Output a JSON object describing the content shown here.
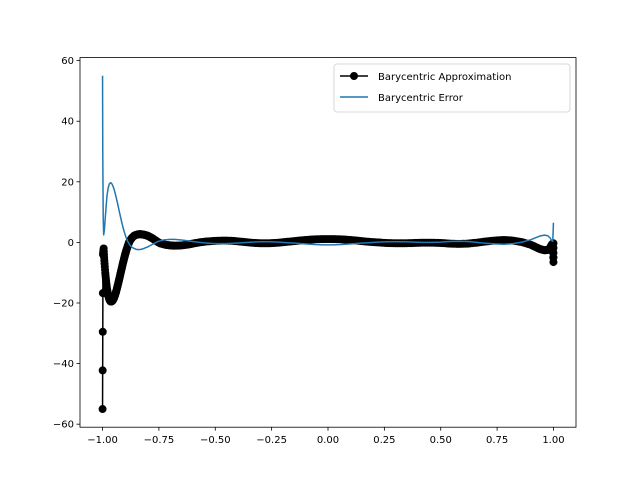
{
  "chart_data": {
    "type": "line",
    "title": "",
    "xlabel": "",
    "ylabel": "",
    "xlim": [
      -1.1,
      1.1
    ],
    "ylim": [
      -61,
      61
    ],
    "grid": false,
    "legend_position": "upper right",
    "x_ticks": [
      -1.0,
      -0.75,
      -0.5,
      -0.25,
      0.0,
      0.25,
      0.5,
      0.75,
      1.0
    ],
    "x_tick_labels": [
      "−1.00",
      "−0.75",
      "−0.50",
      "−0.25",
      "0.00",
      "0.25",
      "0.50",
      "0.75",
      "1.00"
    ],
    "y_ticks": [
      -60,
      -40,
      -20,
      0,
      20,
      40,
      60
    ],
    "y_tick_labels": [
      "−60",
      "−40",
      "−20",
      "0",
      "20",
      "40",
      "60"
    ],
    "series": [
      {
        "name": "Barycentric Approximation",
        "color": "#000000",
        "marker": "circle",
        "points": [
          [
            -1.0,
            -55
          ],
          [
            -0.998,
            -4
          ],
          [
            -0.995,
            -2
          ],
          [
            -0.992,
            -6
          ],
          [
            -0.988,
            -10
          ],
          [
            -0.984,
            -13
          ],
          [
            -0.98,
            -15.5
          ],
          [
            -0.975,
            -17.5
          ],
          [
            -0.97,
            -18.8
          ],
          [
            -0.965,
            -19.5
          ],
          [
            -0.96,
            -19.5
          ],
          [
            -0.955,
            -19.2
          ],
          [
            -0.95,
            -18.5
          ],
          [
            -0.945,
            -17.5
          ],
          [
            -0.94,
            -16.3
          ],
          [
            -0.935,
            -14.9
          ],
          [
            -0.93,
            -13.4
          ],
          [
            -0.925,
            -11.8
          ],
          [
            -0.92,
            -10.2
          ],
          [
            -0.915,
            -8.6
          ],
          [
            -0.91,
            -7.0
          ],
          [
            -0.905,
            -5.5
          ],
          [
            -0.9,
            -4.1
          ],
          [
            -0.895,
            -2.8
          ],
          [
            -0.89,
            -1.6
          ],
          [
            -0.885,
            -0.5
          ],
          [
            -0.88,
            0.4
          ],
          [
            -0.87,
            1.5
          ],
          [
            -0.86,
            2.2
          ],
          [
            -0.85,
            2.5
          ],
          [
            -0.84,
            2.7
          ],
          [
            -0.83,
            2.7
          ],
          [
            -0.82,
            2.6
          ],
          [
            -0.81,
            2.4
          ],
          [
            -0.8,
            2.2
          ],
          [
            -0.79,
            1.8
          ],
          [
            -0.78,
            1.4
          ],
          [
            -0.77,
            0.9
          ],
          [
            -0.76,
            0.4
          ],
          [
            -0.75,
            -0.1
          ],
          [
            -0.74,
            -0.4
          ],
          [
            -0.72,
            -0.8
          ],
          [
            -0.7,
            -1.0
          ],
          [
            -0.68,
            -1.1
          ],
          [
            -0.65,
            -1.0
          ],
          [
            -0.62,
            -0.7
          ],
          [
            -0.6,
            -0.4
          ],
          [
            -0.57,
            0.0
          ],
          [
            -0.54,
            0.3
          ],
          [
            -0.5,
            0.5
          ],
          [
            -0.46,
            0.6
          ],
          [
            -0.42,
            0.5
          ],
          [
            -0.38,
            0.2
          ],
          [
            -0.34,
            -0.1
          ],
          [
            -0.3,
            -0.3
          ],
          [
            -0.26,
            -0.3
          ],
          [
            -0.22,
            -0.1
          ],
          [
            -0.18,
            0.2
          ],
          [
            -0.14,
            0.5
          ],
          [
            -0.1,
            0.8
          ],
          [
            -0.06,
            1.0
          ],
          [
            -0.02,
            1.1
          ],
          [
            0.02,
            1.1
          ],
          [
            0.06,
            1.0
          ],
          [
            0.1,
            0.8
          ],
          [
            0.14,
            0.5
          ],
          [
            0.18,
            0.2
          ],
          [
            0.22,
            0.0
          ],
          [
            0.26,
            -0.2
          ],
          [
            0.3,
            -0.3
          ],
          [
            0.34,
            -0.3
          ],
          [
            0.38,
            -0.2
          ],
          [
            0.42,
            -0.1
          ],
          [
            0.46,
            -0.1
          ],
          [
            0.5,
            -0.2
          ],
          [
            0.54,
            -0.4
          ],
          [
            0.58,
            -0.5
          ],
          [
            0.62,
            -0.4
          ],
          [
            0.66,
            -0.1
          ],
          [
            0.7,
            0.3
          ],
          [
            0.74,
            0.6
          ],
          [
            0.78,
            0.8
          ],
          [
            0.82,
            0.6
          ],
          [
            0.86,
            0.1
          ],
          [
            0.9,
            -0.8
          ],
          [
            0.92,
            -1.5
          ],
          [
            0.94,
            -2.2
          ],
          [
            0.96,
            -2.6
          ],
          [
            0.975,
            -2.5
          ],
          [
            0.985,
            -1.8
          ],
          [
            0.992,
            -0.8
          ],
          [
            0.997,
            -0.4
          ],
          [
            1.0,
            -6.5
          ],
          [
            1.0,
            -0.3
          ]
        ]
      },
      {
        "name": "Barycentric Error",
        "color": "#1f77b4",
        "marker": "none",
        "points": [
          [
            -1.0,
            55
          ],
          [
            -0.999,
            30
          ],
          [
            -0.997,
            8
          ],
          [
            -0.995,
            2.5
          ],
          [
            -0.992,
            4
          ],
          [
            -0.988,
            8
          ],
          [
            -0.984,
            12
          ],
          [
            -0.98,
            15.5
          ],
          [
            -0.975,
            18
          ],
          [
            -0.97,
            19.3
          ],
          [
            -0.965,
            19.7
          ],
          [
            -0.96,
            19.5
          ],
          [
            -0.955,
            18.8
          ],
          [
            -0.95,
            17.8
          ],
          [
            -0.945,
            16.5
          ],
          [
            -0.94,
            15.0
          ],
          [
            -0.935,
            13.4
          ],
          [
            -0.93,
            11.7
          ],
          [
            -0.925,
            10.0
          ],
          [
            -0.92,
            8.3
          ],
          [
            -0.915,
            6.7
          ],
          [
            -0.91,
            5.2
          ],
          [
            -0.905,
            3.8
          ],
          [
            -0.9,
            2.6
          ],
          [
            -0.895,
            1.5
          ],
          [
            -0.89,
            0.6
          ],
          [
            -0.885,
            -0.1
          ],
          [
            -0.88,
            -0.8
          ],
          [
            -0.87,
            -1.6
          ],
          [
            -0.86,
            -2.0
          ],
          [
            -0.85,
            -2.3
          ],
          [
            -0.84,
            -2.4
          ],
          [
            -0.83,
            -2.3
          ],
          [
            -0.82,
            -2.1
          ],
          [
            -0.81,
            -1.8
          ],
          [
            -0.8,
            -1.5
          ],
          [
            -0.79,
            -1.1
          ],
          [
            -0.78,
            -0.7
          ],
          [
            -0.77,
            -0.3
          ],
          [
            -0.76,
            0.1
          ],
          [
            -0.75,
            0.4
          ],
          [
            -0.73,
            0.8
          ],
          [
            -0.7,
            1.0
          ],
          [
            -0.68,
            1.0
          ],
          [
            -0.65,
            0.8
          ],
          [
            -0.62,
            0.5
          ],
          [
            -0.6,
            0.3
          ],
          [
            -0.57,
            0.0
          ],
          [
            -0.54,
            -0.2
          ],
          [
            -0.5,
            -0.4
          ],
          [
            -0.46,
            -0.4
          ],
          [
            -0.42,
            -0.3
          ],
          [
            -0.38,
            -0.1
          ],
          [
            -0.34,
            0.1
          ],
          [
            -0.3,
            0.2
          ],
          [
            -0.26,
            0.2
          ],
          [
            -0.22,
            0.1
          ],
          [
            -0.18,
            -0.1
          ],
          [
            -0.14,
            -0.3
          ],
          [
            -0.1,
            -0.5
          ],
          [
            -0.06,
            -0.7
          ],
          [
            -0.02,
            -0.8
          ],
          [
            0.02,
            -0.8
          ],
          [
            0.06,
            -0.7
          ],
          [
            0.1,
            -0.5
          ],
          [
            0.14,
            -0.3
          ],
          [
            0.18,
            -0.1
          ],
          [
            0.22,
            0.1
          ],
          [
            0.26,
            0.2
          ],
          [
            0.3,
            0.2
          ],
          [
            0.34,
            0.2
          ],
          [
            0.38,
            0.1
          ],
          [
            0.42,
            0.0
          ],
          [
            0.46,
            0.0
          ],
          [
            0.5,
            0.1
          ],
          [
            0.54,
            0.3
          ],
          [
            0.58,
            0.4
          ],
          [
            0.62,
            0.3
          ],
          [
            0.66,
            0.0
          ],
          [
            0.7,
            -0.3
          ],
          [
            0.74,
            -0.5
          ],
          [
            0.78,
            -0.6
          ],
          [
            0.82,
            -0.4
          ],
          [
            0.86,
            0.1
          ],
          [
            0.9,
            0.9
          ],
          [
            0.92,
            1.5
          ],
          [
            0.94,
            2.1
          ],
          [
            0.96,
            2.4
          ],
          [
            0.975,
            2.2
          ],
          [
            0.985,
            1.5
          ],
          [
            0.992,
            0.6
          ],
          [
            0.997,
            0.4
          ],
          [
            1.0,
            6.5
          ]
        ]
      }
    ]
  }
}
